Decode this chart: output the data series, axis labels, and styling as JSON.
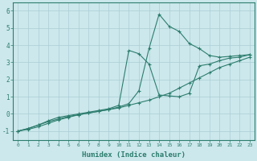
{
  "xlabel": "Humidex (Indice chaleur)",
  "ylabel": "",
  "background_color": "#cce8ec",
  "line_color": "#2d7d6e",
  "grid_color": "#aacdd4",
  "xlim": [
    -0.5,
    23.5
  ],
  "ylim": [
    -1.5,
    6.5
  ],
  "yticks": [
    -1,
    0,
    1,
    2,
    3,
    4,
    5,
    6
  ],
  "xticks": [
    0,
    1,
    2,
    3,
    4,
    5,
    6,
    7,
    8,
    9,
    10,
    11,
    12,
    13,
    14,
    15,
    16,
    17,
    18,
    19,
    20,
    21,
    22,
    23
  ],
  "series1_x": [
    0,
    1,
    2,
    3,
    4,
    5,
    6,
    7,
    8,
    9,
    10,
    11,
    12,
    13,
    14,
    15,
    16,
    17,
    18,
    19,
    20,
    21,
    22,
    23
  ],
  "series1_y": [
    -1.0,
    -0.9,
    -0.75,
    -0.55,
    -0.35,
    -0.2,
    -0.05,
    0.05,
    0.15,
    0.25,
    0.35,
    0.5,
    0.65,
    0.8,
    1.0,
    1.2,
    1.5,
    1.8,
    2.1,
    2.4,
    2.7,
    2.9,
    3.1,
    3.3
  ],
  "series2_x": [
    0,
    1,
    2,
    3,
    4,
    5,
    6,
    7,
    8,
    9,
    10,
    11,
    12,
    13,
    14,
    15,
    16,
    17,
    18,
    19,
    20,
    21,
    22,
    23
  ],
  "series2_y": [
    -1.0,
    -0.85,
    -0.65,
    -0.45,
    -0.3,
    -0.15,
    -0.05,
    0.05,
    0.15,
    0.25,
    0.4,
    0.6,
    1.35,
    3.8,
    5.8,
    5.1,
    4.8,
    4.1,
    3.8,
    3.4,
    3.3,
    3.35,
    3.4,
    3.45
  ],
  "series3_x": [
    0,
    1,
    2,
    3,
    4,
    5,
    6,
    7,
    8,
    9,
    10,
    11,
    12,
    13,
    14,
    15,
    16,
    17,
    18,
    19,
    20,
    21,
    22,
    23
  ],
  "series3_y": [
    -1.0,
    -0.85,
    -0.65,
    -0.4,
    -0.2,
    -0.1,
    0.0,
    0.1,
    0.2,
    0.3,
    0.5,
    3.7,
    3.5,
    2.9,
    1.1,
    1.05,
    1.0,
    1.2,
    2.8,
    2.9,
    3.1,
    3.25,
    3.3,
    3.45
  ]
}
